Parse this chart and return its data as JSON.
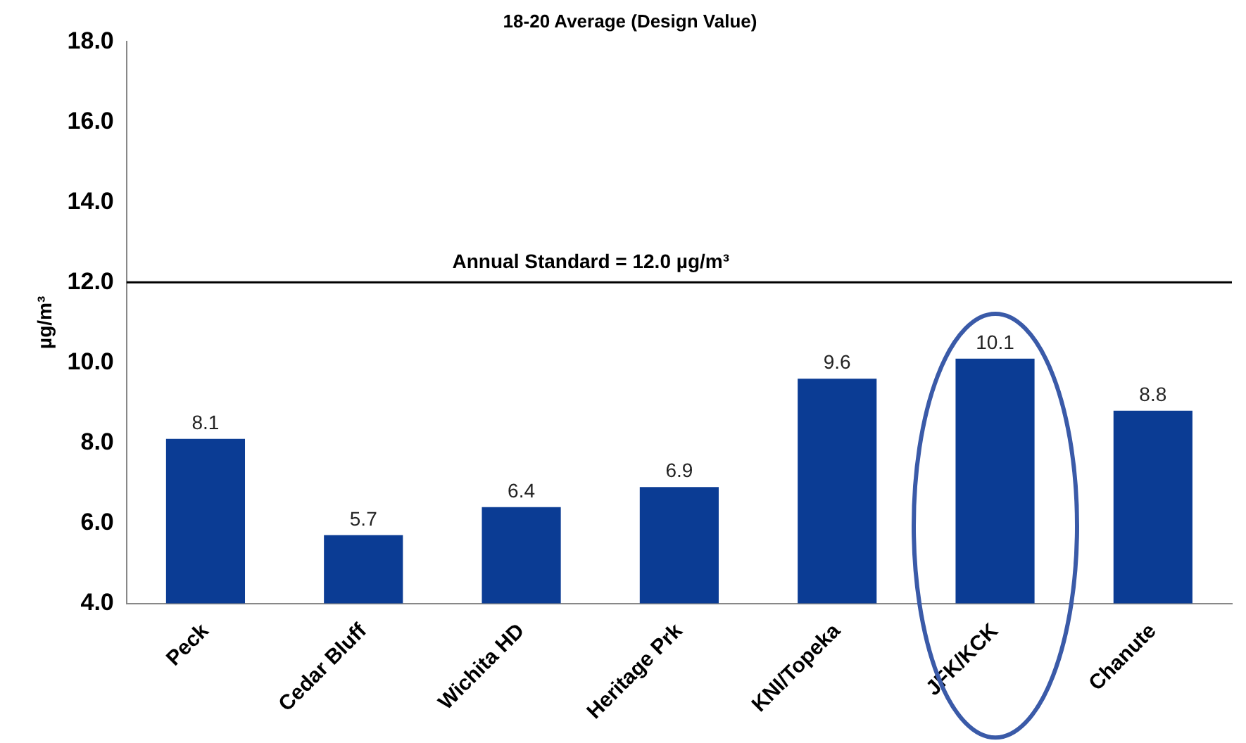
{
  "chart_data": {
    "type": "bar",
    "title": "18-20 Average (Design Value)",
    "ylabel": "µg/m³",
    "categories": [
      "Peck",
      "Cedar Bluff",
      "Wichita HD",
      "Heritage Prk",
      "KNI/Topeka",
      "JFK/KCK",
      "Chanute"
    ],
    "values": [
      8.1,
      5.7,
      6.4,
      6.9,
      9.6,
      10.1,
      8.8
    ],
    "color": "#0b3c94",
    "data_labels": true,
    "ylim": [
      4,
      18
    ],
    "yticks": [
      {
        "value": 4,
        "label": "4.0"
      },
      {
        "value": 6,
        "label": "6.0"
      },
      {
        "value": 8,
        "label": "8.0"
      },
      {
        "value": 10,
        "label": "10.0"
      },
      {
        "value": 12,
        "label": "12.0"
      },
      {
        "value": 14,
        "label": "14.0"
      },
      {
        "value": 16,
        "label": "16.0"
      },
      {
        "value": 18,
        "label": "18.0"
      }
    ],
    "ref_lines": [
      {
        "axis": "y",
        "value": 12,
        "label": "Annual Standard = 12.0 µg/m³",
        "color": "#000000"
      }
    ],
    "grid": false,
    "legend": false
  }
}
